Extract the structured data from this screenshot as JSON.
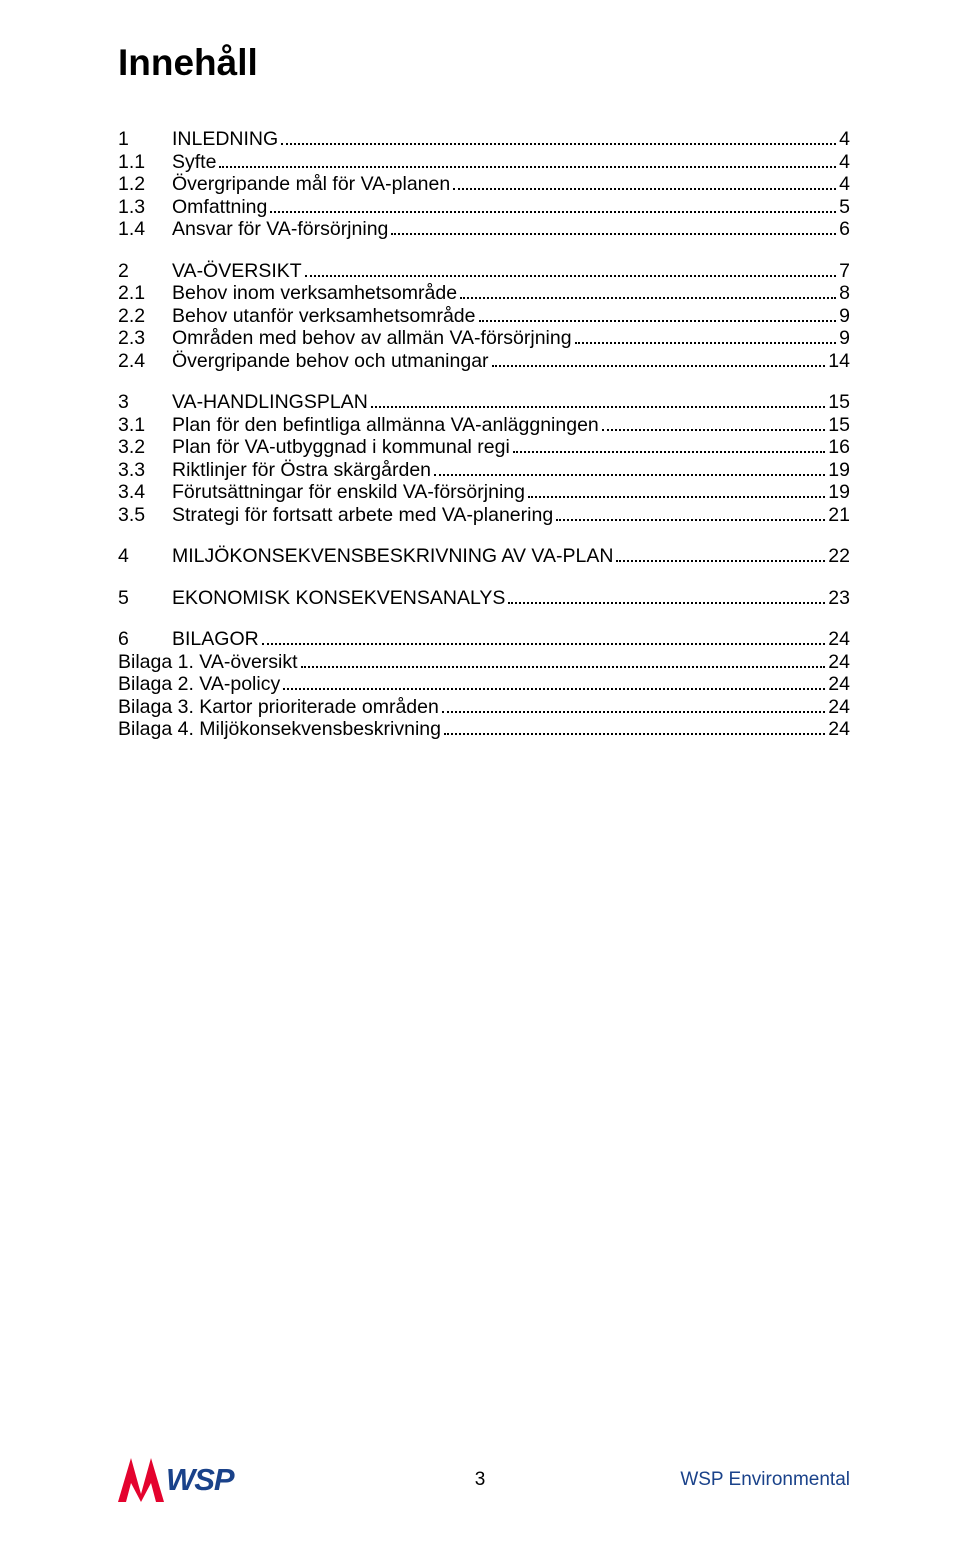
{
  "title": "Innehåll",
  "toc_groups": [
    [
      {
        "lvl": 1,
        "num": "1",
        "label": "INLEDNING",
        "page": "4"
      },
      {
        "lvl": 2,
        "num": "1.1",
        "label": "Syfte",
        "page": "4"
      },
      {
        "lvl": 2,
        "num": "1.2",
        "label": "Övergripande mål för VA-planen",
        "page": "4"
      },
      {
        "lvl": 2,
        "num": "1.3",
        "label": "Omfattning",
        "page": "5"
      },
      {
        "lvl": 2,
        "num": "1.4",
        "label": "Ansvar för VA-försörjning",
        "page": "6"
      }
    ],
    [
      {
        "lvl": 1,
        "num": "2",
        "label": "VA-ÖVERSIKT",
        "page": "7"
      },
      {
        "lvl": 2,
        "num": "2.1",
        "label": "Behov inom verksamhetsområde",
        "page": "8"
      },
      {
        "lvl": 2,
        "num": "2.2",
        "label": "Behov utanför verksamhetsområde",
        "page": "9"
      },
      {
        "lvl": 2,
        "num": "2.3",
        "label": "Områden med behov av allmän VA-försörjning",
        "page": "9"
      },
      {
        "lvl": 2,
        "num": "2.4",
        "label": "Övergripande behov och utmaningar",
        "page": "14"
      }
    ],
    [
      {
        "lvl": 1,
        "num": "3",
        "label": "VA-HANDLINGSPLAN",
        "page": "15"
      },
      {
        "lvl": 2,
        "num": "3.1",
        "label": "Plan för den befintliga allmänna VA-anläggningen",
        "page": "15"
      },
      {
        "lvl": 2,
        "num": "3.2",
        "label": "Plan för VA-utbyggnad i kommunal regi",
        "page": "16"
      },
      {
        "lvl": 2,
        "num": "3.3",
        "label": "Riktlinjer för Östra skärgården",
        "page": "19"
      },
      {
        "lvl": 2,
        "num": "3.4",
        "label": "Förutsättningar för enskild VA-försörjning",
        "page": "19"
      },
      {
        "lvl": 2,
        "num": "3.5",
        "label": "Strategi för fortsatt arbete med VA-planering",
        "page": "21"
      }
    ],
    [
      {
        "lvl": 1,
        "num": "4",
        "label": "MILJÖKONSEKVENSBESKRIVNING AV VA-PLAN",
        "page": "22"
      }
    ],
    [
      {
        "lvl": 1,
        "num": "5",
        "label": "EKONOMISK KONSEKVENSANALYS",
        "page": "23"
      }
    ],
    [
      {
        "lvl": 1,
        "num": "6",
        "label": "BILAGOR",
        "page": "24"
      },
      {
        "lvl": 0,
        "num": "",
        "label": "Bilaga 1. VA-översikt",
        "page": "24"
      },
      {
        "lvl": 0,
        "num": "",
        "label": "Bilaga 2. VA-policy",
        "page": "24"
      },
      {
        "lvl": 0,
        "num": "",
        "label": "Bilaga 3. Kartor prioriterade områden",
        "page": "24"
      },
      {
        "lvl": 0,
        "num": "",
        "label": "Bilaga 4. Miljökonsekvensbeskrivning",
        "page": "24"
      }
    ]
  ],
  "footer": {
    "pagenum": "3",
    "brand": "WSP Environmental",
    "logo_text": "WSP",
    "logo_red": "#e4032e",
    "logo_blue": "#1a428a"
  }
}
